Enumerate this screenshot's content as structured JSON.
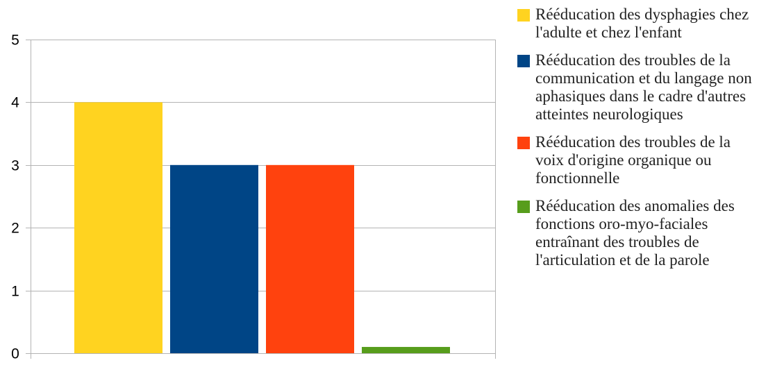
{
  "chart_data": {
    "type": "bar",
    "title": "",
    "xlabel": "",
    "ylabel": "",
    "ylim": [
      0,
      5
    ],
    "yticks": [
      "0",
      "1",
      "2",
      "3",
      "4",
      "5"
    ],
    "grid": true,
    "legend_position": "right",
    "series": [
      {
        "name": "Rééducation des dysphagies chez l'adulte et chez l'enfant",
        "color": "#FFD320",
        "values": [
          4
        ]
      },
      {
        "name": "Rééducation des troubles de la communication et du langage non aphasiques dans le cadre d'autres atteintes neurologiques",
        "color": "#004586",
        "values": [
          3
        ]
      },
      {
        "name": "Rééducation des troubles de la voix d'origine organique ou fonctionnelle",
        "color": "#FF420E",
        "values": [
          3
        ]
      },
      {
        "name": "Rééducation des anomalies des fonctions oro-myo-faciales entraînant des troubles de l'articulation et de la parole",
        "color": "#579D1C",
        "values": [
          0.1
        ]
      }
    ]
  }
}
